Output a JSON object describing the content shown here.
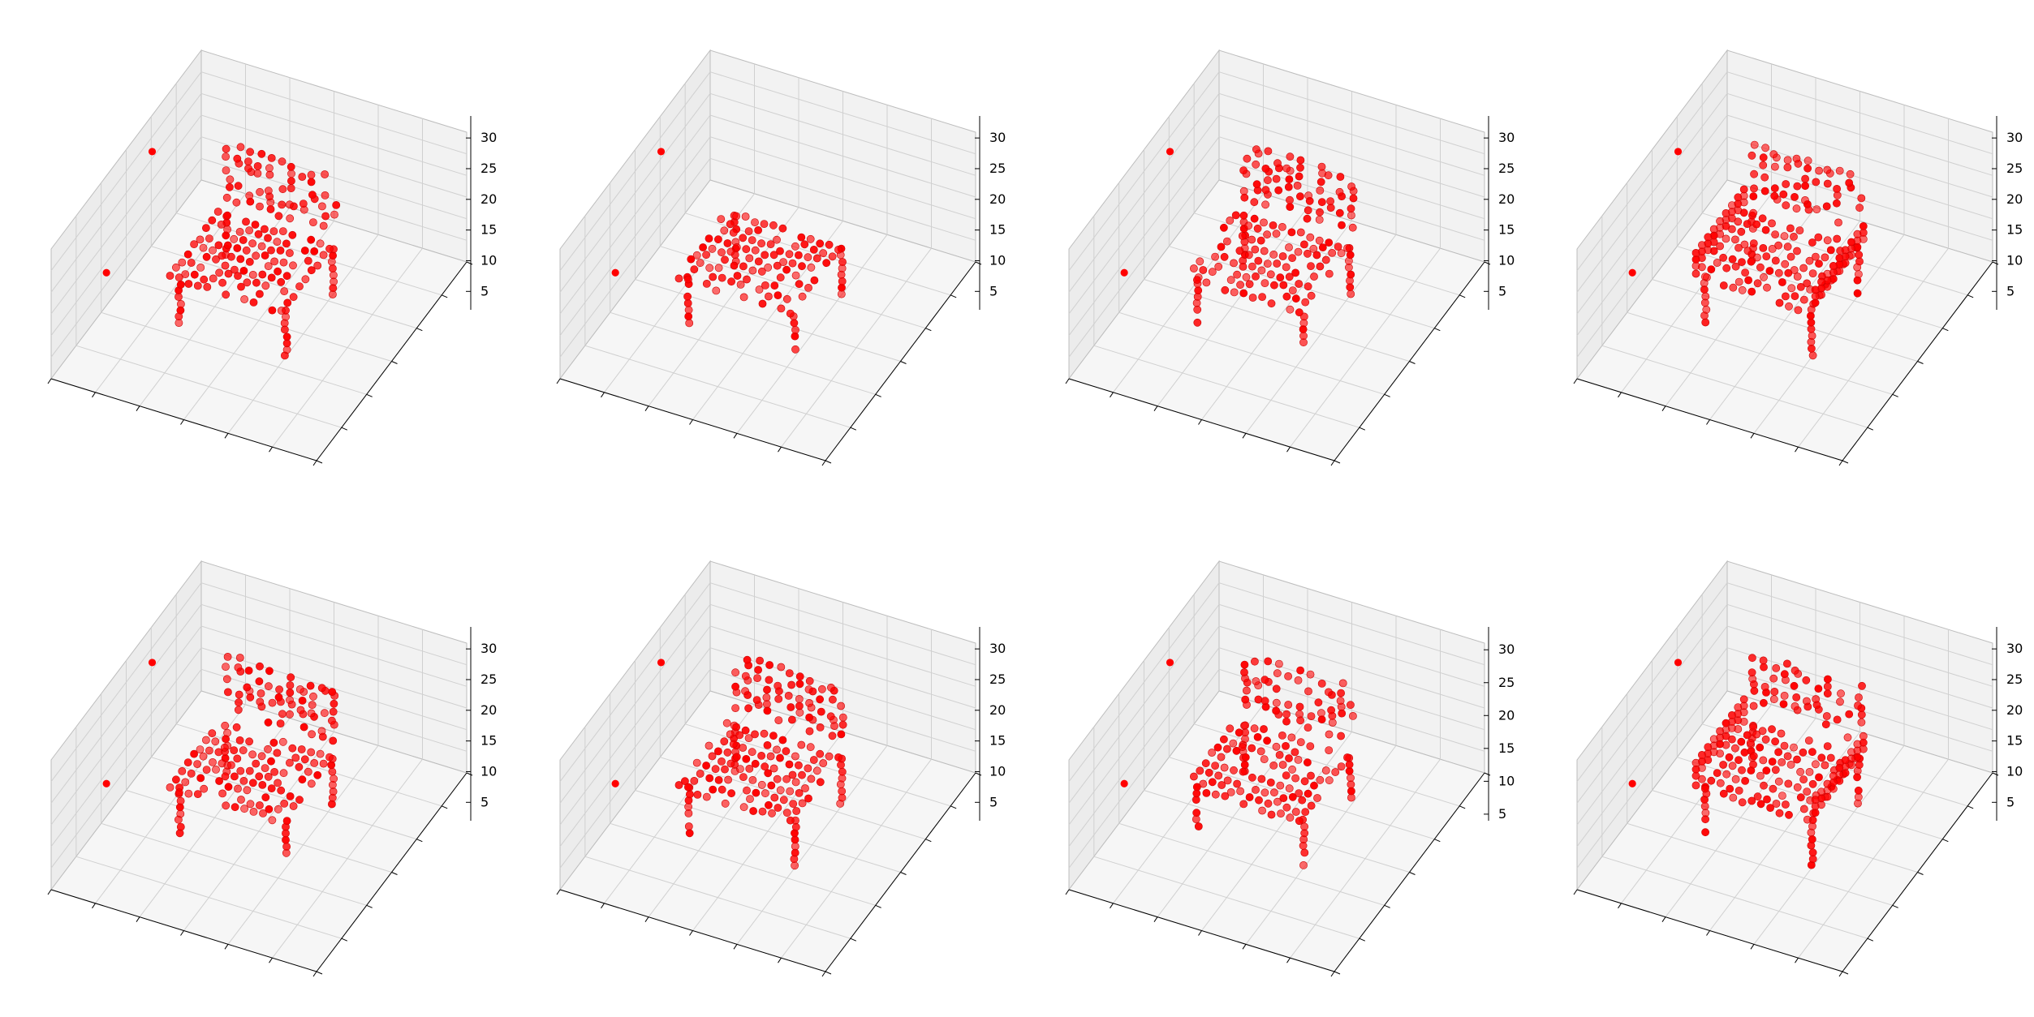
{
  "figure": {
    "marker_color": "#ff0000",
    "pane_colors": {
      "back": "#f2f2f2",
      "side": "#ececec",
      "floor": "#f6f6f6",
      "grid": "#d0d0d0",
      "edge": "#bdbdbd"
    }
  },
  "chart_data": [
    {
      "type": "scatter",
      "subtype": "3d-voxel-scatter",
      "shape": "chair-A",
      "title": "",
      "xlabel": "",
      "ylabel": "",
      "zlabel": "",
      "zlim": [
        2,
        32
      ],
      "z_ticks": [
        "5",
        "10",
        "15",
        "20",
        "25",
        "30"
      ],
      "grid": true,
      "points_visible": "dense cluster of red spheres"
    },
    {
      "type": "scatter",
      "subtype": "3d-voxel-scatter",
      "shape": "chair-B",
      "title": "",
      "xlabel": "",
      "ylabel": "",
      "zlabel": "",
      "zlim": [
        2,
        32
      ],
      "z_ticks": [
        "5",
        "10",
        "15",
        "20",
        "25",
        "30"
      ],
      "grid": true
    },
    {
      "type": "scatter",
      "subtype": "3d-voxel-scatter",
      "shape": "chair-C",
      "title": "",
      "xlabel": "",
      "ylabel": "",
      "zlabel": "",
      "zlim": [
        2,
        32
      ],
      "z_ticks": [
        "5",
        "10",
        "15",
        "20",
        "25",
        "30"
      ],
      "grid": true
    },
    {
      "type": "scatter",
      "subtype": "3d-voxel-scatter",
      "shape": "chair-D",
      "title": "",
      "xlabel": "",
      "ylabel": "",
      "zlabel": "",
      "zlim": [
        2,
        32
      ],
      "z_ticks": [
        "5",
        "10",
        "15",
        "20",
        "25",
        "30"
      ],
      "grid": true
    },
    {
      "type": "scatter",
      "subtype": "3d-voxel-scatter",
      "shape": "chair-E",
      "title": "",
      "xlabel": "",
      "ylabel": "",
      "zlabel": "",
      "zlim": [
        2,
        32
      ],
      "z_ticks": [
        "5",
        "10",
        "15",
        "20",
        "25",
        "30"
      ],
      "grid": true
    },
    {
      "type": "scatter",
      "subtype": "3d-voxel-scatter",
      "shape": "chair-F",
      "title": "",
      "xlabel": "",
      "ylabel": "",
      "zlabel": "",
      "zlim": [
        2,
        32
      ],
      "z_ticks": [
        "5",
        "10",
        "15",
        "20",
        "25",
        "30"
      ],
      "grid": true
    },
    {
      "type": "scatter",
      "subtype": "3d-voxel-scatter",
      "shape": "chair-G",
      "title": "",
      "xlabel": "",
      "ylabel": "",
      "zlabel": "",
      "zlim": [
        4,
        32
      ],
      "z_ticks": [
        "5",
        "10",
        "15",
        "20",
        "25",
        "30"
      ],
      "grid": true
    },
    {
      "type": "scatter",
      "subtype": "3d-voxel-scatter",
      "shape": "chair-H",
      "title": "",
      "xlabel": "",
      "ylabel": "",
      "zlabel": "",
      "zlim": [
        2,
        32
      ],
      "z_ticks": [
        "5",
        "10",
        "15",
        "20",
        "25",
        "30"
      ],
      "grid": true
    }
  ]
}
